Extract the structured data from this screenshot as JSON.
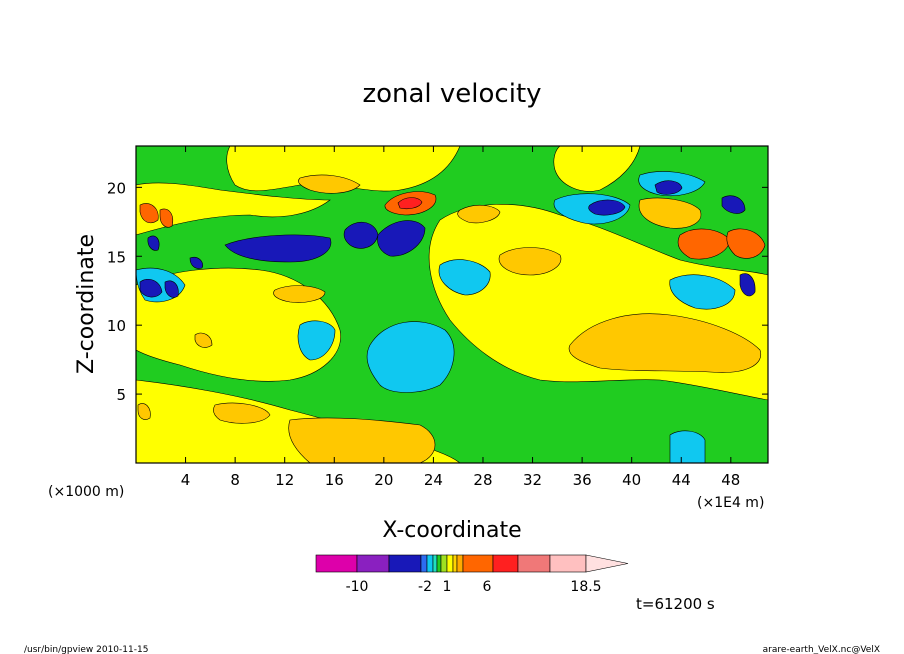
{
  "chart_data": {
    "type": "heatmap",
    "title": "zonal velocity",
    "xlabel": "X-coordinate",
    "ylabel": "Z-coordinate",
    "x_unit_label": "(×1000 m)",
    "x_scale_label": "(×1E4 m)",
    "x_ticks": [
      "4",
      "8",
      "12",
      "16",
      "20",
      "24",
      "28",
      "32",
      "36",
      "40",
      "44",
      "48"
    ],
    "y_ticks": [
      "5",
      "10",
      "15",
      "20"
    ],
    "xlim": [
      0,
      51
    ],
    "ylim": [
      0,
      23
    ],
    "colorbar": {
      "levels": [
        -14,
        -10,
        -6,
        -4,
        -2,
        -1,
        0,
        1,
        2,
        3,
        4,
        6,
        8,
        10,
        12,
        15,
        18.5
      ],
      "colors": [
        "#dd00aa",
        "#8a20c0",
        "#1818b8",
        "#2c6cf0",
        "#10c8f0",
        "#20e0c0",
        "#22cc22",
        "#a0e020",
        "#ffff00",
        "#ffd400",
        "#ffaa00",
        "#ff6600",
        "#ff2020",
        "#f07878",
        "#ffc0c0",
        "#ffe0e0"
      ],
      "labels": [
        "-10",
        "-2",
        "1",
        "6",
        "18.5"
      ]
    },
    "contour_fields": {
      "background_color": "#20cc20",
      "description_levels": {
        "strong_negative": "#1818b8",
        "negative": "#10c8f0",
        "near_zero": "#20cc20",
        "weak_positive": "#ffff00",
        "positive": "#ffc800",
        "strong_positive": "#ff6600",
        "very_strong_positive": "#ff2020"
      }
    }
  },
  "annotations": {
    "time": "t=61200 s",
    "footer_left": "/usr/bin/gpview  2010-11-15",
    "footer_right": "arare-earth_VelX.nc@VelX"
  }
}
